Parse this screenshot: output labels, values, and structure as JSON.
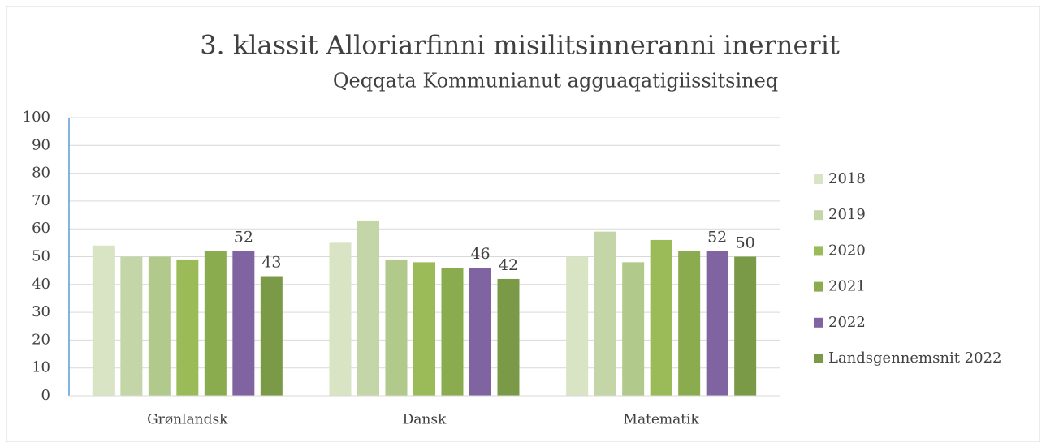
{
  "chart_data": {
    "type": "bar",
    "title": "3. klassit Alloriarfinni misilitsinneranni inernerit",
    "subtitle": "Qeqqata Kommunianut agguaqatigiissitsineq",
    "categories": [
      "Grønlandsk",
      "Dansk",
      "Matematik"
    ],
    "series": [
      {
        "name": "2018",
        "color": "#d8e4c4",
        "values": [
          54,
          55,
          50
        ]
      },
      {
        "name": "2019",
        "color": "#c4d6a8",
        "values": [
          50,
          63,
          59
        ]
      },
      {
        "name": null,
        "color": "#b1c98b",
        "values": [
          50,
          49,
          48
        ]
      },
      {
        "name": "2020",
        "color": "#9bbb59",
        "values": [
          49,
          48,
          56
        ]
      },
      {
        "name": "2021",
        "color": "#8aab4e",
        "values": [
          52,
          46,
          52
        ]
      },
      {
        "name": "2022",
        "color": "#8064a2",
        "values": [
          52,
          46,
          52
        ],
        "data_labels": true
      },
      {
        "name": "Landsgennemsnit 2022",
        "color": "#7a9a48",
        "values": [
          43,
          42,
          50
        ],
        "data_labels": true
      }
    ],
    "ylim": [
      0,
      100
    ],
    "yticks": [
      0,
      10,
      20,
      30,
      40,
      50,
      60,
      70,
      80,
      90,
      100
    ],
    "grid": true,
    "legend": "right"
  }
}
